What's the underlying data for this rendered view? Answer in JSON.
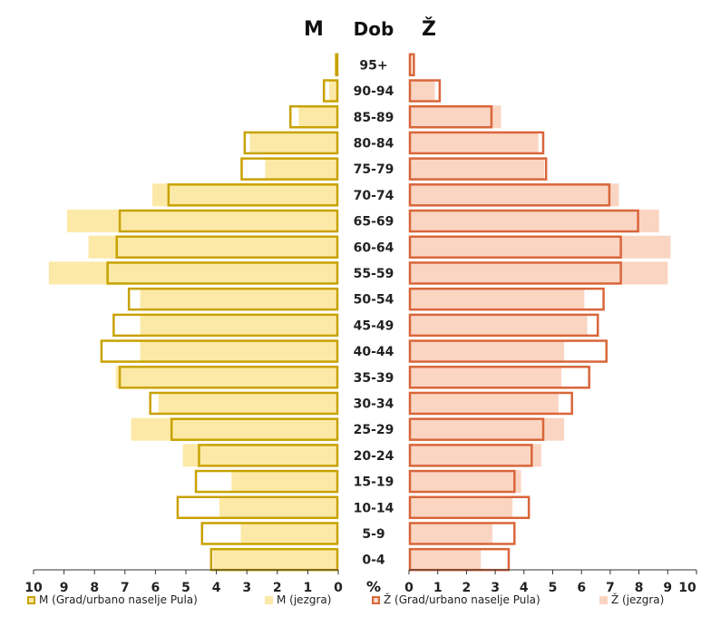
{
  "chart_data": {
    "type": "bar",
    "title_left": "M",
    "title_center": "Dob",
    "title_right": "Ž",
    "axis_unit_label": "%",
    "categories": [
      "95+",
      "90-94",
      "85-89",
      "80-84",
      "75-79",
      "70-74",
      "65-69",
      "60-64",
      "55-59",
      "50-54",
      "45-49",
      "40-44",
      "35-39",
      "30-34",
      "25-29",
      "20-24",
      "15-19",
      "10-14",
      "5-9",
      "0-4"
    ],
    "x_ticks_left": [
      "10",
      "9",
      "8",
      "7",
      "6",
      "5",
      "4",
      "3",
      "2",
      "1",
      "0"
    ],
    "x_ticks_right": [
      "0",
      "1",
      "2",
      "3",
      "4",
      "5",
      "6",
      "7",
      "8",
      "9",
      "10"
    ],
    "xlim": [
      0,
      10
    ],
    "series": [
      {
        "name": "M (Grad/urbano naselje Pula)",
        "side": "left",
        "style": "outline",
        "color": "#c8a200",
        "values": [
          0.1,
          0.5,
          1.6,
          3.1,
          3.2,
          5.6,
          7.2,
          7.3,
          7.6,
          6.9,
          7.4,
          7.8,
          7.2,
          6.2,
          5.5,
          4.6,
          4.7,
          5.3,
          4.5,
          4.2
        ]
      },
      {
        "name": "M (jezgra)",
        "side": "left",
        "style": "fill",
        "color": "#fde9a7",
        "values": [
          0.1,
          0.3,
          1.3,
          2.9,
          2.4,
          6.1,
          8.9,
          8.2,
          9.5,
          6.5,
          6.5,
          6.5,
          7.3,
          5.9,
          6.8,
          5.1,
          3.5,
          3.9,
          3.2,
          4.1
        ]
      },
      {
        "name": "Ž (Grad/urbano naselje Pula)",
        "side": "right",
        "style": "outline",
        "color": "#d9663a",
        "values": [
          0.2,
          1.1,
          2.9,
          4.7,
          4.8,
          7.0,
          8.0,
          7.4,
          7.4,
          6.8,
          6.6,
          6.9,
          6.3,
          5.7,
          4.7,
          4.3,
          3.7,
          4.2,
          3.7,
          3.5
        ]
      },
      {
        "name": "Ž (jezgra)",
        "side": "right",
        "style": "fill",
        "color": "#fad5c2",
        "values": [
          0.1,
          0.9,
          3.2,
          4.5,
          4.7,
          7.3,
          8.7,
          9.1,
          9.0,
          6.1,
          6.2,
          5.4,
          5.3,
          5.2,
          5.4,
          4.6,
          3.9,
          3.6,
          2.9,
          2.5
        ]
      }
    ]
  }
}
